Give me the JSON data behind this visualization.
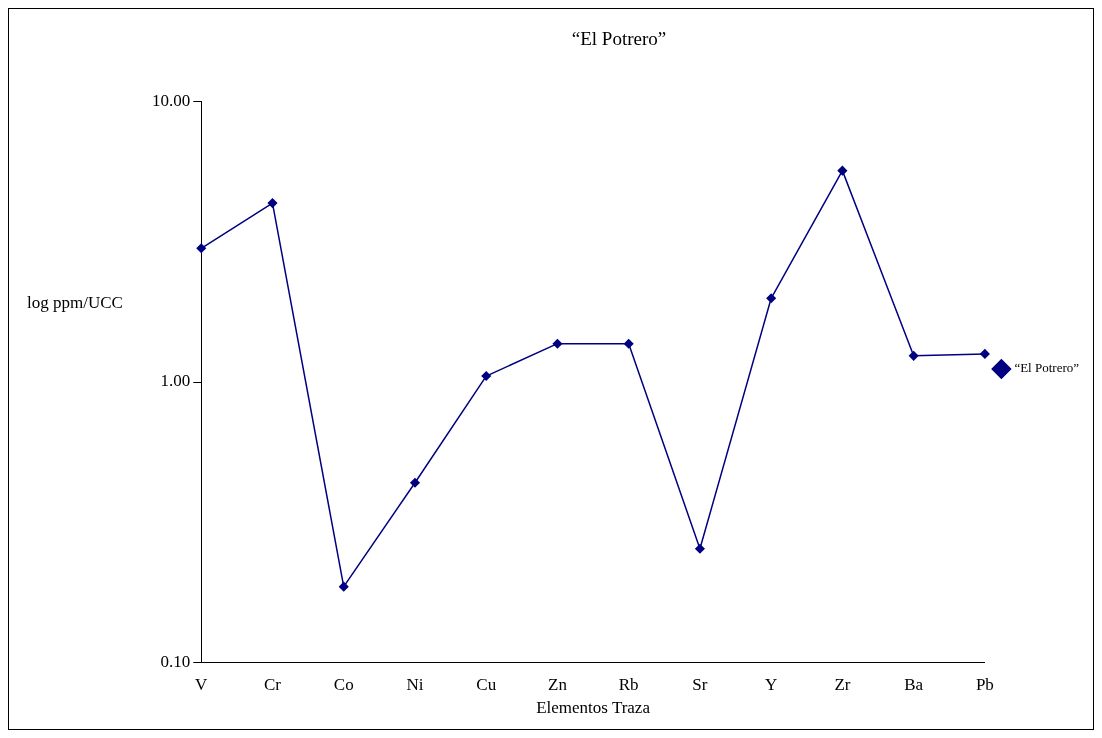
{
  "chart_data": {
    "type": "line",
    "title": "“El Potrero”",
    "xlabel": "Elementos Traza",
    "ylabel": "log ppm/UCC",
    "categories": [
      "V",
      "Cr",
      "Co",
      "Ni",
      "Cu",
      "Zn",
      "Rb",
      "Sr",
      "Y",
      "Zr",
      "Ba",
      "Pb"
    ],
    "series": [
      {
        "name": "“El Potrero”",
        "color": "#000080",
        "values": [
          3.0,
          4.35,
          0.186,
          0.437,
          1.05,
          1.37,
          1.37,
          0.254,
          1.99,
          5.68,
          1.24,
          1.26
        ]
      }
    ],
    "log": true,
    "ylim": [
      0.1,
      10
    ],
    "yticks": [
      {
        "value": 0.1,
        "label": "0.10"
      },
      {
        "value": 1,
        "label": "1.00"
      },
      {
        "value": 10,
        "label": "10.00"
      }
    ],
    "grid": false,
    "legend": "right",
    "marker": "diamond",
    "line_style": "solid"
  }
}
